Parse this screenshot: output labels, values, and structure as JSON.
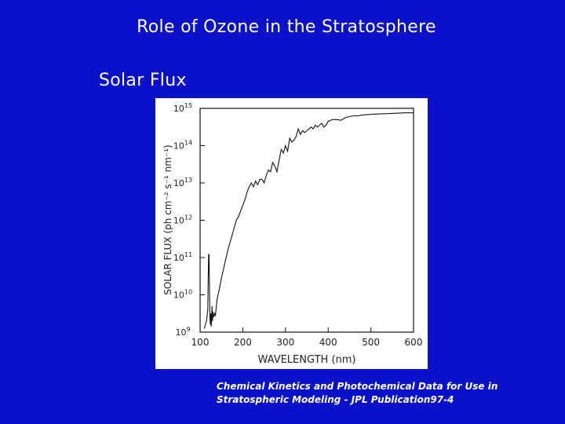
{
  "slide": {
    "title": "Role of Ozone in the Stratosphere",
    "subtitle": "Solar Flux",
    "caption_line1": "Chemical Kinetics and Photochemical Data for Use in",
    "caption_line2": "Stratospheric Modeling - JPL Publication97-4"
  },
  "colors": {
    "background": "#0b10c9",
    "text": "#ffffff",
    "panel": "#ffffff",
    "plot_line": "#111111"
  },
  "chart_data": {
    "type": "line",
    "title": "",
    "xlabel": "WAVELENGTH (nm)",
    "ylabel": "SOLAR FLUX (ph cm⁻² s⁻¹ nm⁻¹)",
    "xlim": [
      100,
      600
    ],
    "ylim_log10": [
      9,
      15
    ],
    "y_scale": "log",
    "grid": false,
    "xticks": [
      100,
      200,
      300,
      400,
      500,
      600
    ],
    "ytick_labels": [
      {
        "exp": 15,
        "text": "10",
        "sup": "15"
      },
      {
        "exp": 14,
        "text": "10",
        "sup": "14"
      },
      {
        "exp": 13,
        "text": "10",
        "sup": "13"
      },
      {
        "exp": 12,
        "text": "10",
        "sup": "12"
      },
      {
        "exp": 11,
        "text": "10",
        "sup": "11"
      },
      {
        "exp": 10,
        "text": "10",
        "sup": "10"
      },
      {
        "exp": 9,
        "text": "10",
        "sup": "9"
      }
    ],
    "series": [
      {
        "x": [
          110,
          115,
          118,
          119,
          120,
          121,
          122,
          123,
          124,
          125,
          126,
          127,
          128,
          129,
          130,
          132,
          134,
          136,
          138,
          140,
          145,
          150,
          155,
          160,
          165,
          170,
          175,
          180,
          185,
          190,
          195,
          200,
          205,
          210,
          215,
          220,
          225,
          230,
          235,
          240,
          245,
          250,
          255,
          260,
          265,
          270,
          275,
          280,
          285,
          290,
          295,
          300,
          305,
          310,
          315,
          320,
          325,
          330,
          335,
          340,
          345,
          350,
          355,
          360,
          365,
          370,
          375,
          380,
          385,
          390,
          395,
          400,
          410,
          420,
          430,
          440,
          450,
          460,
          470,
          480,
          490,
          500,
          520,
          540,
          560,
          580,
          600
        ],
        "log10_y": [
          9.1,
          9.3,
          9.6,
          10.4,
          11.1,
          11.05,
          10.1,
          9.4,
          9.2,
          9.5,
          9.15,
          9.35,
          9.7,
          9.3,
          9.55,
          9.4,
          9.5,
          9.45,
          9.7,
          9.9,
          10.15,
          10.45,
          10.7,
          10.95,
          11.2,
          11.4,
          11.6,
          11.8,
          12.0,
          12.1,
          12.25,
          12.4,
          12.55,
          12.75,
          12.9,
          13.0,
          12.9,
          13.05,
          12.95,
          13.1,
          13.1,
          13.0,
          13.2,
          13.35,
          13.3,
          13.55,
          13.45,
          13.3,
          13.6,
          13.9,
          13.8,
          14.0,
          13.85,
          14.2,
          14.1,
          14.15,
          14.25,
          14.45,
          14.3,
          14.4,
          14.35,
          14.4,
          14.45,
          14.5,
          14.45,
          14.55,
          14.5,
          14.55,
          14.6,
          14.5,
          14.55,
          14.65,
          14.7,
          14.7,
          14.68,
          14.75,
          14.78,
          14.8,
          14.8,
          14.82,
          14.83,
          14.84,
          14.85,
          14.86,
          14.87,
          14.88,
          14.88
        ]
      }
    ]
  }
}
